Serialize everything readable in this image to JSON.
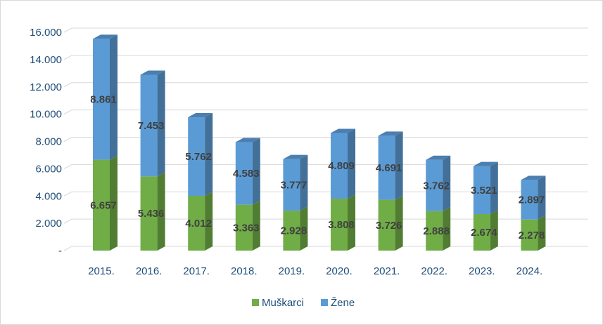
{
  "chart_data": {
    "type": "bar",
    "stacked": true,
    "three_d": true,
    "categories": [
      "2015.",
      "2016.",
      "2017.",
      "2018.",
      "2019.",
      "2020.",
      "2021.",
      "2022.",
      "2023.",
      "2024."
    ],
    "series": [
      {
        "name": "Muškarci",
        "color": "#70ad47",
        "values": [
          6657,
          5436,
          4012,
          3363,
          2928,
          3808,
          3726,
          2888,
          2674,
          2278
        ],
        "labels": [
          "6.657",
          "5.436",
          "4.012",
          "3.363",
          "2.928",
          "3.808",
          "3.726",
          "2.888",
          "2.674",
          "2.278"
        ]
      },
      {
        "name": "Žene",
        "color": "#5b9bd5",
        "values": [
          8861,
          7453,
          5762,
          4583,
          3777,
          4809,
          4691,
          3762,
          3521,
          2897
        ],
        "labels": [
          "8.861",
          "7.453",
          "5.762",
          "4.583",
          "3.777",
          "4.809",
          "4.691",
          "3.762",
          "3.521",
          "2.897"
        ]
      }
    ],
    "ylim": [
      0,
      16000
    ],
    "yticks": [
      {
        "value": 0,
        "label": "-"
      },
      {
        "value": 2000,
        "label": "2.000"
      },
      {
        "value": 4000,
        "label": "4.000"
      },
      {
        "value": 6000,
        "label": "6.000"
      },
      {
        "value": 8000,
        "label": "8.000"
      },
      {
        "value": 10000,
        "label": "10.000"
      },
      {
        "value": 12000,
        "label": "12.000"
      },
      {
        "value": 14000,
        "label": "14.000"
      },
      {
        "value": 16000,
        "label": "16.000"
      }
    ],
    "grid": true,
    "legend": "bottom",
    "title": "",
    "xlabel": "",
    "ylabel": ""
  }
}
